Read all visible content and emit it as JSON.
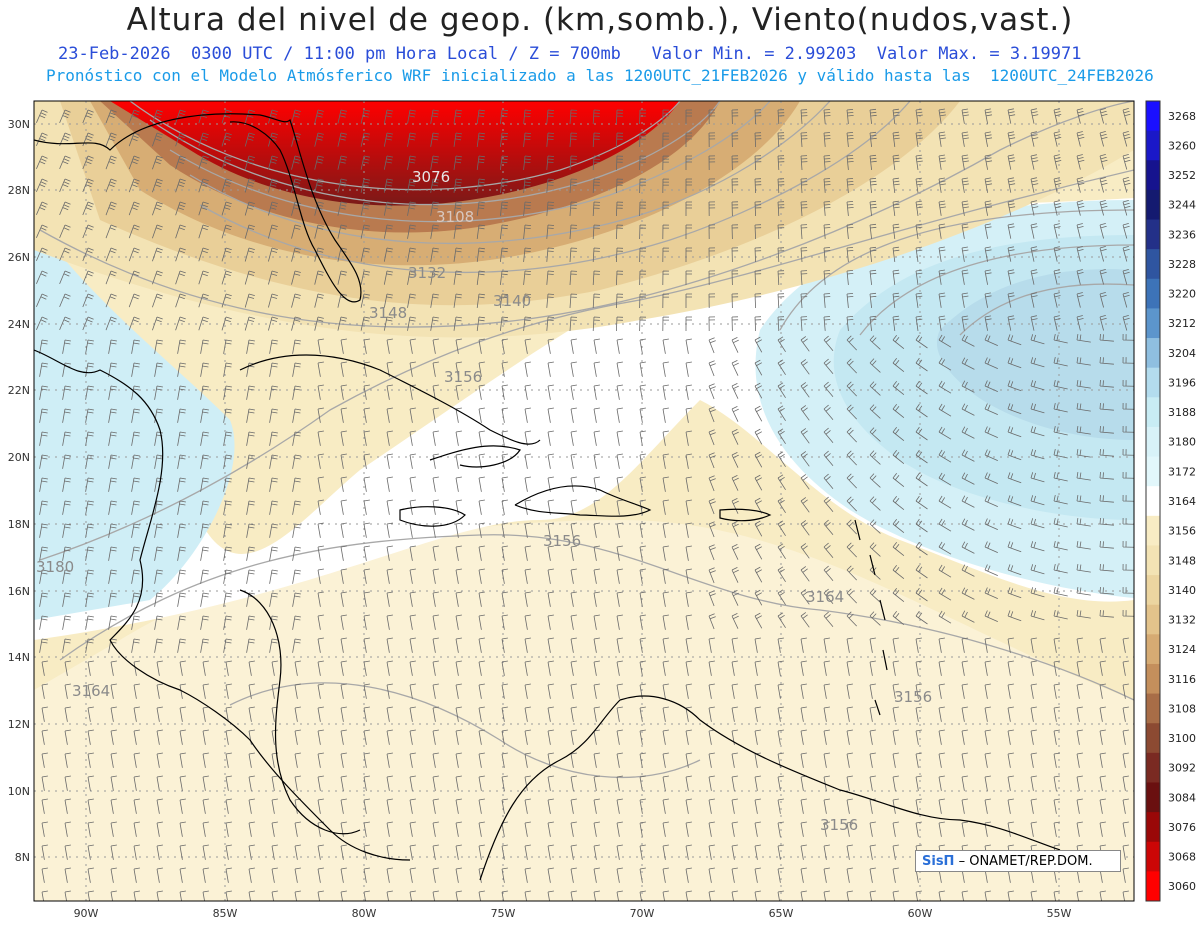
{
  "title": "Altura del nivel de geop. (km,somb.), Viento(nudos,vast.)",
  "subtitle1": "23-Feb-2026  0300 UTC / 11:00 pm Hora Local / Z = 700mb   Valor Min. = 2.99203  Valor Max. = 3.19971",
  "subtitle2": "Pronóstico con el Modelo Atmósferico WRF inicializado a las 1200UTC_21FEB2026 y válido hasta las  1200UTC_24FEB2026",
  "credit": {
    "logo": "SisΠ",
    "text": "– ONAMET/REP.DOM."
  },
  "axes": {
    "lon_labels": [
      "90W",
      "85W",
      "80W",
      "75W",
      "70W",
      "65W",
      "60W",
      "55W"
    ],
    "lat_labels": [
      "30N",
      "28N",
      "26N",
      "24N",
      "22N",
      "20N",
      "18N",
      "16N",
      "14N",
      "12N",
      "10N",
      "8N"
    ]
  },
  "colorbar": {
    "levels": [
      "3268",
      "3260",
      "3252",
      "3244",
      "3236",
      "3228",
      "3220",
      "3212",
      "3204",
      "3196",
      "3188",
      "3180",
      "3172",
      "3164",
      "3156",
      "3148",
      "3140",
      "3132",
      "3124",
      "3116",
      "3108",
      "3100",
      "3092",
      "3084",
      "3076",
      "3068",
      "3060"
    ],
    "colors": [
      "#1a10ff",
      "#1a18c8",
      "#16138e",
      "#141a70",
      "#233088",
      "#2f55a0",
      "#3d73b8",
      "#5c95cc",
      "#8fbfe0",
      "#b3dcee",
      "#c8ecf4",
      "#d8f2f8",
      "#e2f7fb",
      "#ffffff",
      "#f8ecc4",
      "#f3e3b4",
      "#ecd5a0",
      "#e3c38b",
      "#d6ab73",
      "#c48f5c",
      "#a86d47",
      "#8c4a32",
      "#7a2a22",
      "#6a1010",
      "#9a0808",
      "#cc0606",
      "#ff0000"
    ]
  },
  "contour_labels": [
    "3076",
    "3108",
    "3132",
    "3140",
    "3148",
    "3156",
    "3156",
    "3164",
    "3164",
    "3180",
    "3156",
    "3156"
  ],
  "colors": {
    "subtitle1": "#2a4dd8",
    "subtitle2": "#1a9be8",
    "coast": "#000000",
    "grid": "#9a9a9a"
  }
}
